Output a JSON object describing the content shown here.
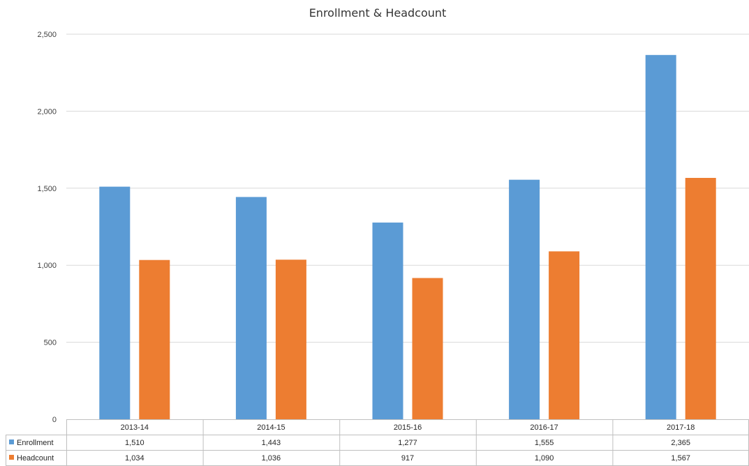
{
  "chart_data": {
    "type": "bar",
    "title": "Enrollment & Headcount",
    "categories": [
      "2013-14",
      "2014-15",
      "2015-16",
      "2016-17",
      "2017-18"
    ],
    "series": [
      {
        "name": "Enrollment",
        "color": "#5b9bd5",
        "values": [
          1510,
          1443,
          1277,
          1555,
          2365
        ],
        "labels": [
          "1,510",
          "1,443",
          "1,277",
          "1,555",
          "2,365"
        ]
      },
      {
        "name": "Headcount",
        "color": "#ed7d31",
        "values": [
          1034,
          1036,
          917,
          1090,
          1567
        ],
        "labels": [
          "1,034",
          "1,036",
          "917",
          "1,090",
          "1,567"
        ]
      }
    ],
    "ylim": [
      0,
      2500
    ],
    "yticks": [
      0,
      500,
      1000,
      1500,
      2000,
      2500
    ],
    "ytick_labels": [
      "0",
      "500",
      "1,000",
      "1,500",
      "2,000",
      "2,500"
    ],
    "grid": true,
    "legend": "data-table"
  }
}
